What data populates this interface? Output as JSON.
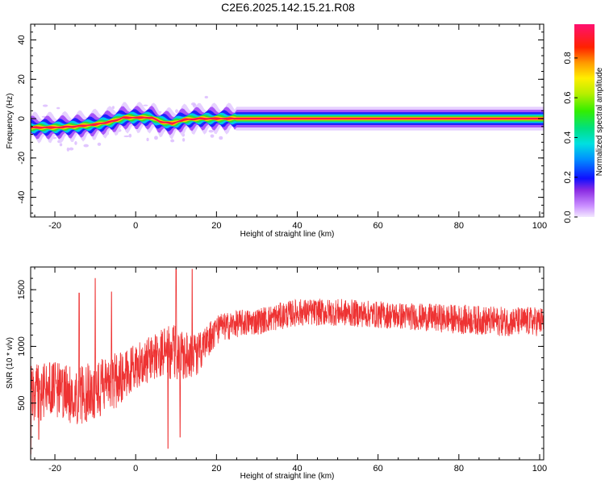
{
  "title": "C2E6.2025.142.15.21.R08",
  "chart_data": [
    {
      "type": "heatmap",
      "xlabel": "Height of straight line (km)",
      "ylabel": "Frequency (Hz)",
      "xlim": [
        -26,
        101
      ],
      "ylim": [
        -50,
        48
      ],
      "x_ticks": [
        -20,
        0,
        20,
        40,
        60,
        80,
        100
      ],
      "y_ticks": [
        -40,
        -20,
        0,
        20,
        40
      ],
      "colorbar": {
        "label": "Normalized spectral amplitude",
        "range": [
          0,
          0.97
        ],
        "ticks": [
          0.0,
          0.2,
          0.4,
          0.6,
          0.8
        ]
      },
      "ridge": {
        "x_km": [
          -26,
          -20,
          -15,
          -10,
          -6,
          -3,
          0,
          4,
          6,
          9,
          12,
          16,
          20,
          25,
          40,
          60,
          80,
          100
        ],
        "frequency_hz": [
          -4.5,
          -4.5,
          -4,
          -3,
          -1.5,
          0.5,
          0.5,
          0.5,
          -1.5,
          -2.5,
          -0.5,
          0,
          0,
          0,
          0,
          0,
          0,
          0
        ]
      }
    },
    {
      "type": "line",
      "xlabel": "Height of straight line (km)",
      "ylabel": "SNR (10 * v/v)",
      "xlim": [
        -26,
        101
      ],
      "ylim": [
        0,
        1700
      ],
      "x_ticks": [
        -20,
        0,
        20,
        40,
        60,
        80,
        100
      ],
      "y_ticks": [
        500,
        1000,
        1500
      ],
      "line_color": "#ee3333",
      "envelope": {
        "x_km": [
          -26,
          -20,
          -15,
          -10,
          -5,
          0,
          5,
          10,
          15,
          20,
          25,
          30,
          40,
          50,
          60,
          70,
          80,
          90,
          100
        ],
        "snr_mean": [
          580,
          620,
          560,
          620,
          700,
          820,
          920,
          960,
          920,
          1150,
          1200,
          1220,
          1300,
          1300,
          1280,
          1260,
          1240,
          1220,
          1220
        ],
        "snr_spread": [
          260,
          250,
          260,
          270,
          250,
          200,
          200,
          260,
          180,
          130,
          120,
          120,
          120,
          120,
          120,
          120,
          130,
          130,
          130
        ]
      },
      "spikes": [
        {
          "x_km": -26,
          "snr": 50
        },
        {
          "x_km": -24,
          "snr": 180
        },
        {
          "x_km": -14,
          "snr": 1470
        },
        {
          "x_km": -10,
          "snr": 1600
        },
        {
          "x_km": -6,
          "snr": 1480
        },
        {
          "x_km": 8,
          "snr": 100
        },
        {
          "x_km": 10,
          "snr": 1680
        },
        {
          "x_km": 11,
          "snr": 200
        },
        {
          "x_km": 14,
          "snr": 1680
        }
      ]
    }
  ]
}
